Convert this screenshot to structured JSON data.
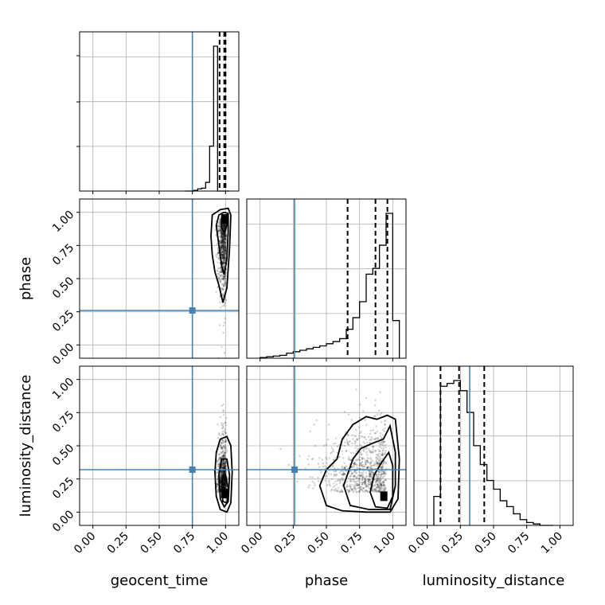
{
  "chart_data": {
    "type": "corner",
    "parameters": [
      "geocent_time",
      "phase",
      "luminosity_distance"
    ],
    "axis_ticks": [
      "0.00",
      "0.25",
      "0.50",
      "0.75",
      "1.00"
    ],
    "axis_range": [
      -0.1,
      1.1
    ],
    "truths": {
      "geocent_time": 0.75,
      "phase": 0.26,
      "luminosity_distance": 0.32
    },
    "histograms": [
      {
        "parameter": "geocent_time",
        "bin_edges": [
          0.7,
          0.73,
          0.76,
          0.79,
          0.82,
          0.85,
          0.88,
          0.91,
          0.94,
          0.97,
          1.0,
          1.03
        ],
        "counts": [
          0,
          0,
          0.005,
          0.015,
          0.02,
          0.06,
          0.31,
          1.0,
          0,
          0,
          0
        ],
        "quantile_lines": [
          0.955,
          0.99,
          1.0
        ]
      },
      {
        "parameter": "phase",
        "bin_edges": [
          0.0,
          0.05,
          0.1,
          0.15,
          0.2,
          0.25,
          0.3,
          0.35,
          0.4,
          0.45,
          0.5,
          0.55,
          0.6,
          0.65,
          0.7,
          0.75,
          0.8,
          0.85,
          0.9,
          0.95,
          1.0,
          1.05
        ],
        "counts": [
          0.005,
          0.01,
          0.015,
          0.02,
          0.035,
          0.045,
          0.055,
          0.065,
          0.075,
          0.085,
          0.1,
          0.115,
          0.135,
          0.2,
          0.28,
          0.39,
          0.58,
          0.62,
          0.78,
          1.0,
          0.26
        ],
        "quantile_lines": [
          0.66,
          0.87,
          0.96
        ]
      },
      {
        "parameter": "luminosity_distance",
        "bin_edges": [
          0.05,
          0.1,
          0.15,
          0.2,
          0.25,
          0.3,
          0.35,
          0.4,
          0.45,
          0.5,
          0.55,
          0.6,
          0.65,
          0.7,
          0.75,
          0.8,
          0.85,
          0.9,
          0.95
        ],
        "counts": [
          0.2,
          0.96,
          0.98,
          1.0,
          0.93,
          0.78,
          0.55,
          0.42,
          0.31,
          0.25,
          0.17,
          0.13,
          0.08,
          0.04,
          0.02,
          0.01,
          0.0,
          0.0
        ],
        "quantile_lines": [
          0.1,
          0.24,
          0.43
        ]
      }
    ],
    "scatter_panels": [
      {
        "x": "geocent_time",
        "y": "phase",
        "contours": [
          [
            [
              0.92,
              0.55
            ],
            [
              0.95,
              0.45
            ],
            [
              0.98,
              0.32
            ],
            [
              1.01,
              0.43
            ],
            [
              1.03,
              0.72
            ],
            [
              1.04,
              0.98
            ],
            [
              1.02,
              1.03
            ],
            [
              0.96,
              1.02
            ],
            [
              0.9,
              0.98
            ],
            [
              0.89,
              0.82
            ],
            [
              0.9,
              0.68
            ]
          ],
          [
            [
              0.95,
              0.75
            ],
            [
              0.97,
              0.6
            ],
            [
              0.99,
              0.53
            ],
            [
              1.01,
              0.65
            ],
            [
              1.02,
              0.85
            ],
            [
              1.02,
              0.99
            ],
            [
              0.99,
              1.0
            ],
            [
              0.95,
              0.98
            ],
            [
              0.93,
              0.9
            ]
          ],
          [
            [
              0.97,
              0.88
            ],
            [
              0.99,
              0.85
            ],
            [
              1.01,
              0.9
            ],
            [
              1.01,
              0.97
            ],
            [
              0.99,
              0.98
            ],
            [
              0.97,
              0.96
            ]
          ]
        ]
      },
      {
        "x": "geocent_time",
        "y": "luminosity_distance",
        "contours": [
          [
            [
              0.92,
              0.3
            ],
            [
              0.93,
              0.12
            ],
            [
              0.96,
              0.02
            ],
            [
              1.01,
              0.0
            ],
            [
              1.04,
              0.07
            ],
            [
              1.05,
              0.3
            ],
            [
              1.04,
              0.5
            ],
            [
              1.01,
              0.57
            ],
            [
              0.96,
              0.55
            ],
            [
              0.93,
              0.45
            ]
          ],
          [
            [
              0.95,
              0.28
            ],
            [
              0.96,
              0.1
            ],
            [
              0.99,
              0.04
            ],
            [
              1.02,
              0.08
            ],
            [
              1.03,
              0.28
            ],
            [
              1.01,
              0.4
            ],
            [
              0.97,
              0.4
            ]
          ],
          [
            [
              0.97,
              0.2
            ],
            [
              0.98,
              0.08
            ],
            [
              1.01,
              0.07
            ],
            [
              1.02,
              0.18
            ],
            [
              1.0,
              0.28
            ],
            [
              0.98,
              0.27
            ]
          ]
        ]
      },
      {
        "x": "phase",
        "y": "luminosity_distance",
        "contours": [
          [
            [
              0.45,
              0.2
            ],
            [
              0.5,
              0.05
            ],
            [
              0.62,
              0.01
            ],
            [
              0.8,
              0.0
            ],
            [
              0.98,
              0.0
            ],
            [
              1.04,
              0.1
            ],
            [
              1.05,
              0.4
            ],
            [
              1.02,
              0.7
            ],
            [
              0.96,
              0.73
            ],
            [
              0.88,
              0.7
            ],
            [
              0.8,
              0.72
            ],
            [
              0.7,
              0.66
            ],
            [
              0.62,
              0.55
            ],
            [
              0.58,
              0.4
            ],
            [
              0.5,
              0.32
            ]
          ],
          [
            [
              0.63,
              0.2
            ],
            [
              0.68,
              0.05
            ],
            [
              0.82,
              0.02
            ],
            [
              0.98,
              0.02
            ],
            [
              1.02,
              0.2
            ],
            [
              1.02,
              0.45
            ],
            [
              0.98,
              0.65
            ],
            [
              0.93,
              0.55
            ],
            [
              0.85,
              0.52
            ],
            [
              0.76,
              0.48
            ],
            [
              0.7,
              0.4
            ]
          ],
          [
            [
              0.83,
              0.15
            ],
            [
              0.87,
              0.04
            ],
            [
              0.96,
              0.03
            ],
            [
              1.0,
              0.12
            ],
            [
              1.0,
              0.35
            ],
            [
              0.97,
              0.45
            ],
            [
              0.92,
              0.38
            ],
            [
              0.86,
              0.28
            ]
          ]
        ]
      }
    ]
  }
}
